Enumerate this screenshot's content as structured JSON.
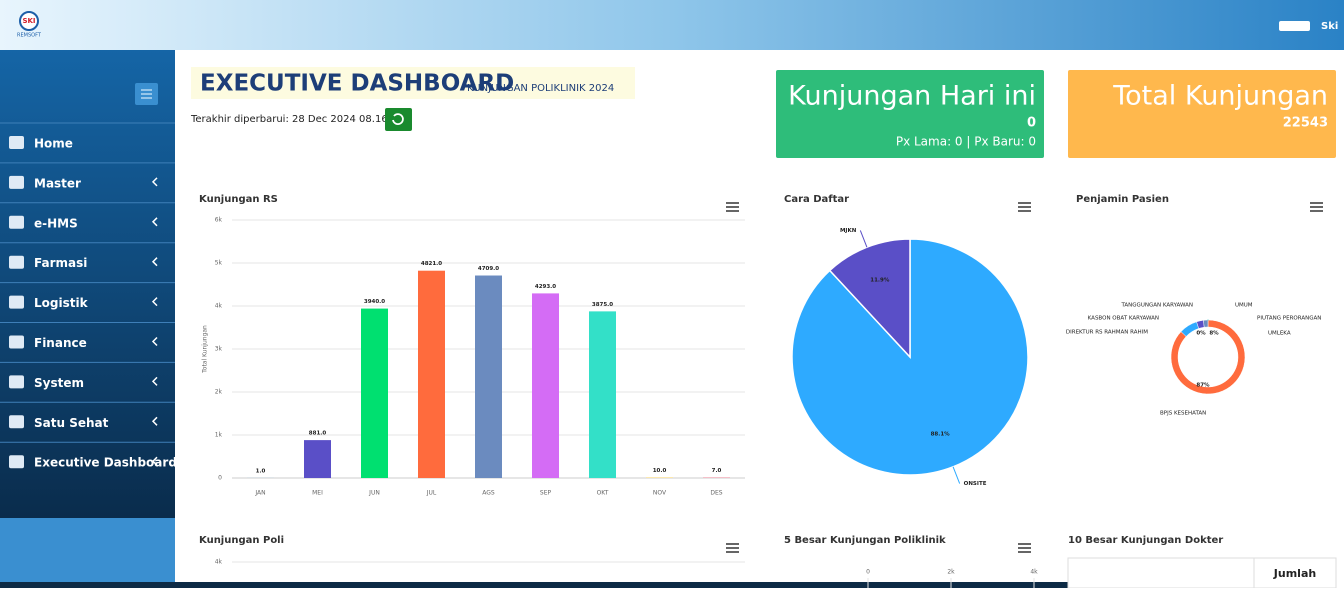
{
  "header": {
    "brand": "SKI",
    "brand_sub": "REMSOFT",
    "user": "Ski"
  },
  "sidebar": {
    "menu": [
      "Home",
      "Master",
      "e-HMS",
      "Farmasi",
      "Logistik",
      "Finance",
      "System",
      "Satu Sehat",
      "Executive Dashboard"
    ]
  },
  "page": {
    "title": "EXECUTIVE DASHBOARD",
    "subtitle": "KUNJUNGAN POLIKLINIK 2024",
    "updated": "Terakhir diperbarui: 28 Dec 2024 08.16"
  },
  "cards": [
    {
      "title": "Kunjungan Hari ini",
      "value": 0,
      "detail": "Px Lama: 0 | Px Baru: 0",
      "color": "#2ebd7a"
    },
    {
      "title": "Total Kunjungan",
      "value": 22543,
      "color": "#ffb84d"
    }
  ],
  "chart_data": [
    {
      "type": "bar",
      "title": "Kunjungan RS",
      "y_label": "Total Kunjungan",
      "categories": [
        "JAN",
        "MEI",
        "JUN",
        "JUL",
        "AGS",
        "SEP",
        "OKT",
        "NOV",
        "DES"
      ],
      "values": [
        1,
        881,
        3940,
        4821,
        4709,
        4293,
        3875,
        10,
        7
      ],
      "value_labels": [
        "1.0",
        "881.0",
        "3940.0",
        "4821.0",
        "4709.0",
        "4293.0",
        "3875.0",
        "10.0",
        "7.0"
      ],
      "colors": [
        "#2eaaff",
        "#5a4fc7",
        "#00e070",
        "#ff6b3d",
        "#6b8bbf",
        "#d46cf5",
        "#33e0c8",
        "#ffd34d",
        "#ff4d6d"
      ],
      "ylim": [
        0,
        6000
      ],
      "yticks": [
        0,
        {
          "value": 1000,
          "label": "1k"
        },
        {
          "value": 2000,
          "label": "2k"
        },
        {
          "value": 3000,
          "label": "3k"
        },
        {
          "value": 4000,
          "label": "4k"
        },
        {
          "value": 5000,
          "label": "5k"
        },
        {
          "value": 6000,
          "label": "6k"
        }
      ],
      "grid": true
    },
    {
      "type": "pie",
      "title": "Cara Daftar",
      "categories": [
        "ONSITE",
        "MJKN"
      ],
      "values": [
        88.1,
        11.9
      ],
      "value_labels": [
        "88.1%",
        "11.9%"
      ],
      "colors": [
        "#2eaaff",
        "#5a4fc7"
      ]
    },
    {
      "type": "donut",
      "title": "Penjamin Pasien",
      "categories": [
        "BPJS KESEHATAN",
        "UMUM",
        "PIUTANG PERORANGAN",
        "UMLEKA",
        "TANGGUNGAN KARYAWAN",
        "KASBON OBAT KARYAWAN",
        "DIREKTUR RS RAHMAN RAHIM"
      ],
      "values": [
        87,
        8,
        3,
        2,
        0,
        0,
        0
      ],
      "value_labels": [
        "87%",
        "8%",
        null,
        null,
        null,
        null,
        "0%"
      ],
      "colors": [
        "#ff6b3d",
        "#2eaaff",
        "#5a4fc7",
        "#6b8bbf",
        "#00e070",
        "#d46cf5",
        "#33e0c8"
      ]
    },
    {
      "type": "line",
      "title": "Kunjungan Poli",
      "yticks": [
        {
          "value": 4000,
          "label": "4k"
        }
      ]
    },
    {
      "type": "hbar",
      "title": "5 Besar Kunjungan Poliklinik",
      "xticks": [
        0,
        {
          "value": 2000,
          "label": "2k"
        },
        {
          "value": 4000,
          "label": "4k"
        }
      ]
    }
  ],
  "table": {
    "title": "10 Besar Kunjungan Dokter",
    "header": [
      "Jumlah"
    ]
  }
}
